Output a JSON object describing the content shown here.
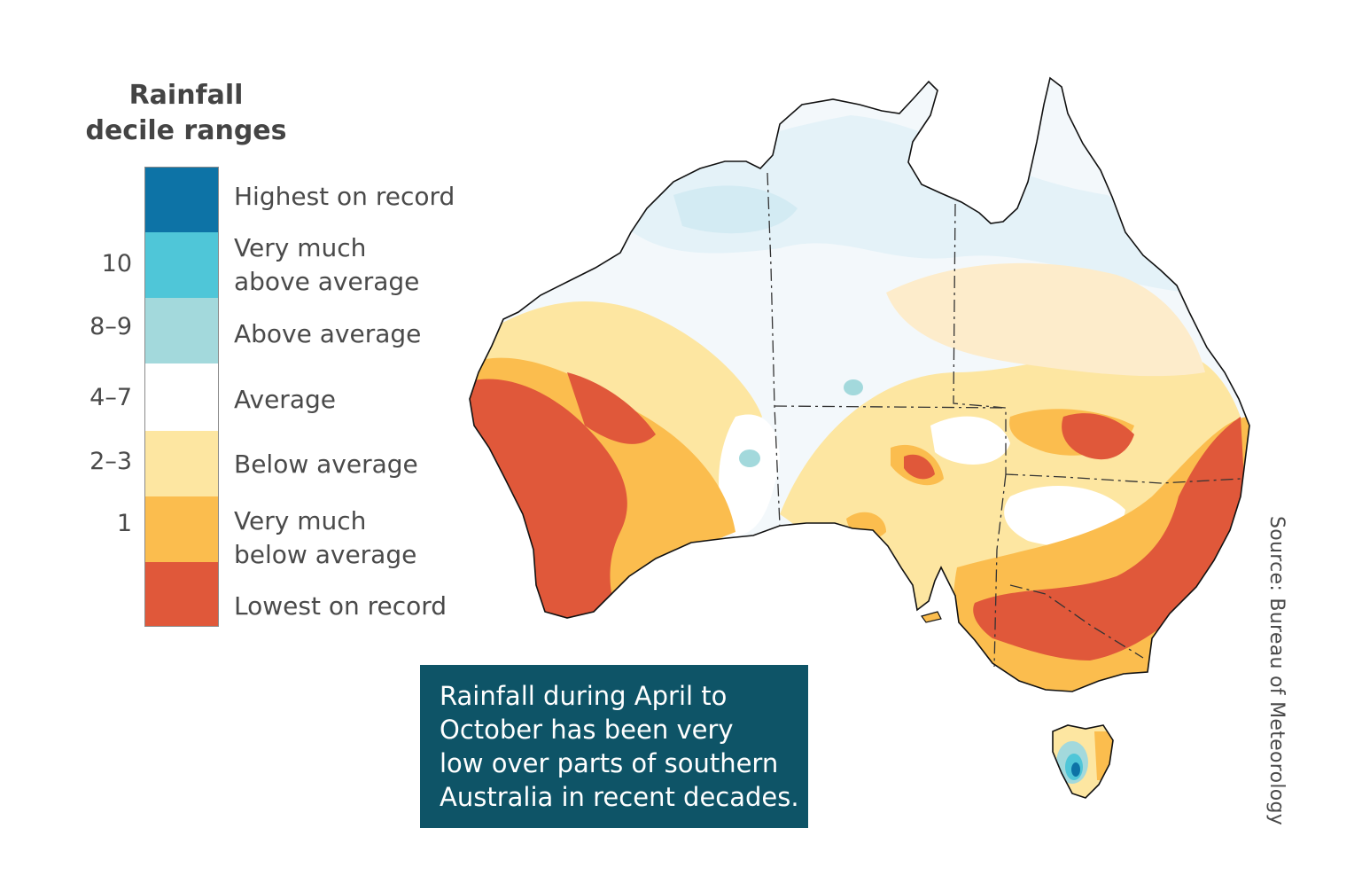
{
  "legend": {
    "title_line1": "Rainfall",
    "title_line2": "decile ranges",
    "categories": [
      {
        "name": "highest",
        "label_lines": [
          "Highest on record"
        ],
        "color": "#0d73a6"
      },
      {
        "name": "very-much-above",
        "label_lines": [
          "Very much",
          "above average"
        ],
        "color": "#4fc6d8"
      },
      {
        "name": "above",
        "label_lines": [
          "Above average"
        ],
        "color": "#a3d9dc"
      },
      {
        "name": "average",
        "label_lines": [
          "Average"
        ],
        "color": "#ffffff"
      },
      {
        "name": "below",
        "label_lines": [
          "Below average"
        ],
        "color": "#fde6a1"
      },
      {
        "name": "very-much-below",
        "label_lines": [
          "Very much",
          "below average"
        ],
        "color": "#fbbd4e"
      },
      {
        "name": "lowest",
        "label_lines": [
          "Lowest on record"
        ],
        "color": "#e0583a"
      }
    ],
    "decile_ticks": [
      "10",
      "8–9",
      "4–7",
      "2–3",
      "1"
    ]
  },
  "map": {
    "state_border_color": "#333333",
    "coast_color": "#111111"
  },
  "callout": {
    "lines": [
      "Rainfall during April to",
      "October has been very",
      "low over parts of southern",
      "Australia in recent decades."
    ],
    "background": "#0e5467"
  },
  "source": "Source: Bureau of Meteorology"
}
